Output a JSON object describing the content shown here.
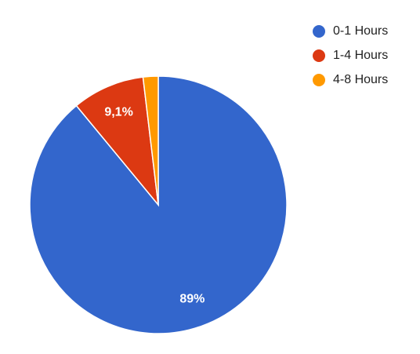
{
  "chart_data": {
    "type": "pie",
    "categories": [
      "0-1 Hours",
      "1-4 Hours",
      "4-8 Hours"
    ],
    "values": [
      89,
      9.1,
      1.9
    ],
    "value_labels": [
      "89%",
      "9,1%",
      null
    ],
    "colors": [
      "#3366cc",
      "#dc3912",
      "#ff9900"
    ],
    "legend": "right"
  }
}
